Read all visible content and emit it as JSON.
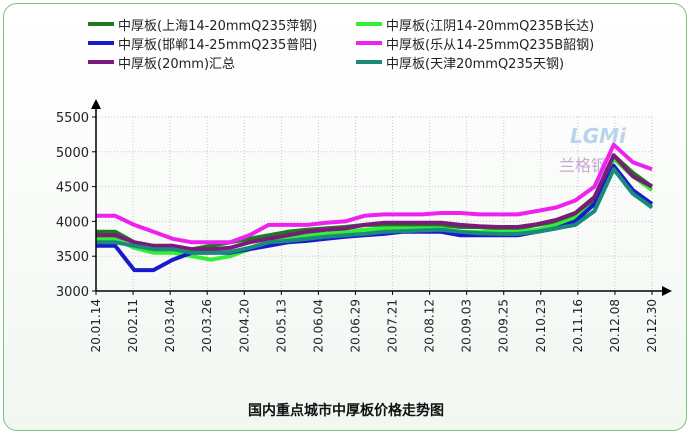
{
  "chart_data": {
    "type": "line",
    "title": "国内重点城市中厚板价格走势图",
    "x_ticks": [
      "20.01.14",
      "20.02.11",
      "20.03.04",
      "20.03.26",
      "20.04.20",
      "20.05.13",
      "20.06.04",
      "20.06.29",
      "20.07.21",
      "20.08.12",
      "20.09.03",
      "20.09.25",
      "20.10.23",
      "20.11.16",
      "20.12.08",
      "20.12.30"
    ],
    "ylim": [
      3000,
      5500
    ],
    "y_ticks": [
      3000,
      3500,
      4000,
      4500,
      5000,
      5500
    ],
    "grid": true,
    "legend_position": "top",
    "watermark": {
      "logo": "LGMi",
      "text": "兰格钢"
    },
    "series": [
      {
        "name": "中厚板(上海14-20mmQ235萍钢)",
        "color": "#1e7a1e",
        "values": [
          3850,
          3850,
          3700,
          3650,
          3600,
          3600,
          3650,
          3700,
          3750,
          3800,
          3850,
          3880,
          3900,
          3920,
          3950,
          3950,
          3950,
          3950,
          3950,
          3920,
          3920,
          3900,
          3900,
          3950,
          4000,
          4100,
          4300,
          4950,
          4700,
          4500
        ]
      },
      {
        "name": "中厚板(江阴14-20mmQ235B长达)",
        "color": "#33ee33",
        "values": [
          3750,
          3750,
          3620,
          3550,
          3550,
          3500,
          3450,
          3500,
          3600,
          3700,
          3750,
          3800,
          3820,
          3850,
          3880,
          3900,
          3900,
          3900,
          3900,
          3850,
          3850,
          3850,
          3850,
          3880,
          3950,
          4050,
          4250,
          4900,
          4650,
          4450
        ]
      },
      {
        "name": "中厚板(邯郸14-25mmQ235普阳)",
        "color": "#1a1acc",
        "values": [
          3650,
          3650,
          3300,
          3300,
          3450,
          3550,
          3550,
          3550,
          3600,
          3650,
          3700,
          3720,
          3750,
          3780,
          3800,
          3820,
          3850,
          3850,
          3850,
          3800,
          3800,
          3800,
          3800,
          3850,
          3900,
          4000,
          4250,
          4800,
          4450,
          4250
        ]
      },
      {
        "name": "中厚板(乐从14-25mmQ235B韶钢)",
        "color": "#ee22ee",
        "values": [
          4080,
          4080,
          3950,
          3850,
          3750,
          3700,
          3700,
          3700,
          3800,
          3950,
          3950,
          3950,
          3980,
          4000,
          4080,
          4100,
          4100,
          4100,
          4120,
          4120,
          4100,
          4100,
          4100,
          4150,
          4200,
          4300,
          4500,
          5100,
          4850,
          4750
        ]
      },
      {
        "name": "中厚板(20mm)汇总",
        "color": "#7a1a7a",
        "values": [
          3800,
          3800,
          3700,
          3650,
          3650,
          3600,
          3600,
          3620,
          3700,
          3750,
          3800,
          3850,
          3880,
          3900,
          3950,
          3980,
          3980,
          3980,
          3980,
          3950,
          3930,
          3920,
          3920,
          3960,
          4020,
          4120,
          4350,
          4950,
          4650,
          4500
        ]
      },
      {
        "name": "中厚板(天津20mmQ235天钢)",
        "color": "#1a8a7a",
        "values": [
          3700,
          3700,
          3650,
          3600,
          3600,
          3550,
          3550,
          3560,
          3620,
          3700,
          3720,
          3750,
          3780,
          3800,
          3820,
          3850,
          3860,
          3870,
          3880,
          3850,
          3830,
          3820,
          3820,
          3850,
          3900,
          3950,
          4150,
          4750,
          4400,
          4200
        ]
      }
    ]
  }
}
